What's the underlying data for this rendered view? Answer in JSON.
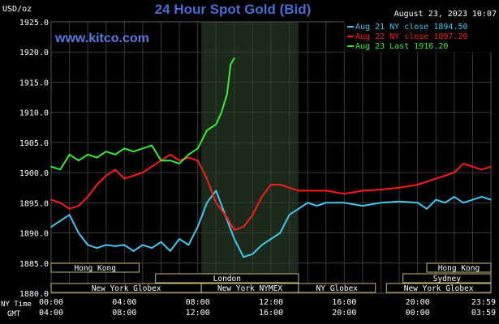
{
  "header": {
    "unit_label": "USD/oz",
    "title": "24 Hour Spot Gold (Bid)",
    "timestamp": "August 23, 2023 10:07",
    "watermark": "www.kitco.com"
  },
  "colors": {
    "background": "#000000",
    "grid": "#3a3a3a",
    "axis_text": "#ffffff",
    "title": "#4a6cd4",
    "watermark": "#5a78e0",
    "series_aug21": "#44c8f0",
    "series_aug22": "#ff1a1a",
    "series_aug23": "#33ee33",
    "session_text": "#ffffff",
    "session_border": "#c8b878",
    "nymex_shade": "#1c2a1c"
  },
  "bottom_axis": {
    "ny_time_label": "NY Time",
    "gmt_label": "GMT",
    "ny_ticks": [
      "00:00",
      "04:00",
      "08:00",
      "12:00",
      "16:00",
      "20:00",
      "23:59"
    ],
    "gmt_ticks": [
      "04:00",
      "08:00",
      "12:00",
      "16:00",
      "20:00",
      "00:00",
      "03:59"
    ]
  },
  "sessions": [
    {
      "name": "Hong Kong"
    },
    {
      "name": "London"
    },
    {
      "name": "New York Globex"
    },
    {
      "name": "New York NYMEX"
    },
    {
      "name": "NY Globex"
    },
    {
      "name": "Hong Kong"
    },
    {
      "name": "Sydney"
    },
    {
      "name": "New York Globex"
    }
  ],
  "chart_data": {
    "type": "line",
    "title": "24 Hour Spot Gold (Bid)",
    "ylabel": "USD/oz",
    "xlabel": "NY Time",
    "x_unit": "hours (NY time)",
    "xlim": [
      0,
      24
    ],
    "ylim": [
      1880,
      1925
    ],
    "y_ticks": [
      "1880.0",
      "1885.0",
      "1890.0",
      "1895.0",
      "1900.0",
      "1905.0",
      "1910.0",
      "1915.0",
      "1920.0",
      "1925.0"
    ],
    "grid": true,
    "legend_position": "top-right",
    "series": [
      {
        "name": "Aug 21 NY close 1894.50",
        "color_key": "series_aug21",
        "x": [
          0,
          0.5,
          1,
          1.5,
          2,
          2.5,
          3,
          3.5,
          4,
          4.5,
          5,
          5.5,
          6,
          6.5,
          7,
          7.5,
          8,
          8.5,
          9,
          9.5,
          10,
          10.5,
          11,
          11.5,
          12,
          12.5,
          13,
          13.5,
          14,
          14.5,
          15,
          16,
          17,
          18,
          19,
          20,
          20.5,
          21,
          21.5,
          22,
          22.5,
          23,
          23.5,
          24
        ],
        "values": [
          1891,
          1892,
          1893,
          1890,
          1888,
          1887.5,
          1888,
          1887.8,
          1888,
          1887,
          1888,
          1887.5,
          1888.5,
          1887,
          1889,
          1888,
          1891,
          1895,
          1897,
          1893,
          1889,
          1886,
          1886.5,
          1888,
          1889,
          1890,
          1893,
          1894,
          1895,
          1894.5,
          1895,
          1895,
          1894.5,
          1895,
          1895.2,
          1895,
          1894,
          1895.5,
          1895,
          1896,
          1895,
          1895.5,
          1896,
          1895.5
        ]
      },
      {
        "name": "Aug 22 NY close 1897.20",
        "color_key": "series_aug22",
        "x": [
          0,
          0.5,
          1,
          1.5,
          2,
          2.5,
          3,
          3.5,
          4,
          4.5,
          5,
          5.5,
          6,
          6.5,
          7,
          7.5,
          8,
          8.5,
          9,
          9.5,
          10,
          10.5,
          11,
          11.5,
          12,
          12.5,
          13,
          13.5,
          14,
          15,
          16,
          17,
          18,
          19,
          20,
          21,
          21.5,
          22,
          22.5,
          23,
          23.5,
          24
        ],
        "values": [
          1895.5,
          1895,
          1894,
          1894.5,
          1896,
          1898,
          1899.5,
          1900.5,
          1899,
          1899.5,
          1900,
          1901,
          1902,
          1903,
          1902,
          1902.5,
          1902,
          1899,
          1895,
          1893,
          1890.5,
          1891,
          1893,
          1896,
          1898,
          1898,
          1897.5,
          1897,
          1897,
          1897,
          1896.5,
          1897,
          1897.2,
          1897.5,
          1898,
          1899,
          1899.5,
          1900,
          1901.5,
          1901,
          1900.5,
          1901
        ]
      },
      {
        "name": "Aug 23 Last 1916.20",
        "color_key": "series_aug23",
        "x": [
          0,
          0.5,
          1,
          1.5,
          2,
          2.5,
          3,
          3.5,
          4,
          4.5,
          5,
          5.5,
          6,
          6.5,
          7,
          7.5,
          8,
          8.5,
          9,
          9.3,
          9.6,
          9.8,
          10
        ],
        "values": [
          1901,
          1900.5,
          1903,
          1902,
          1903,
          1902.5,
          1903.5,
          1903,
          1904,
          1903.5,
          1904,
          1904.5,
          1902,
          1902,
          1901.5,
          1903,
          1904,
          1907,
          1908,
          1910,
          1913,
          1918,
          1919
        ]
      }
    ]
  }
}
